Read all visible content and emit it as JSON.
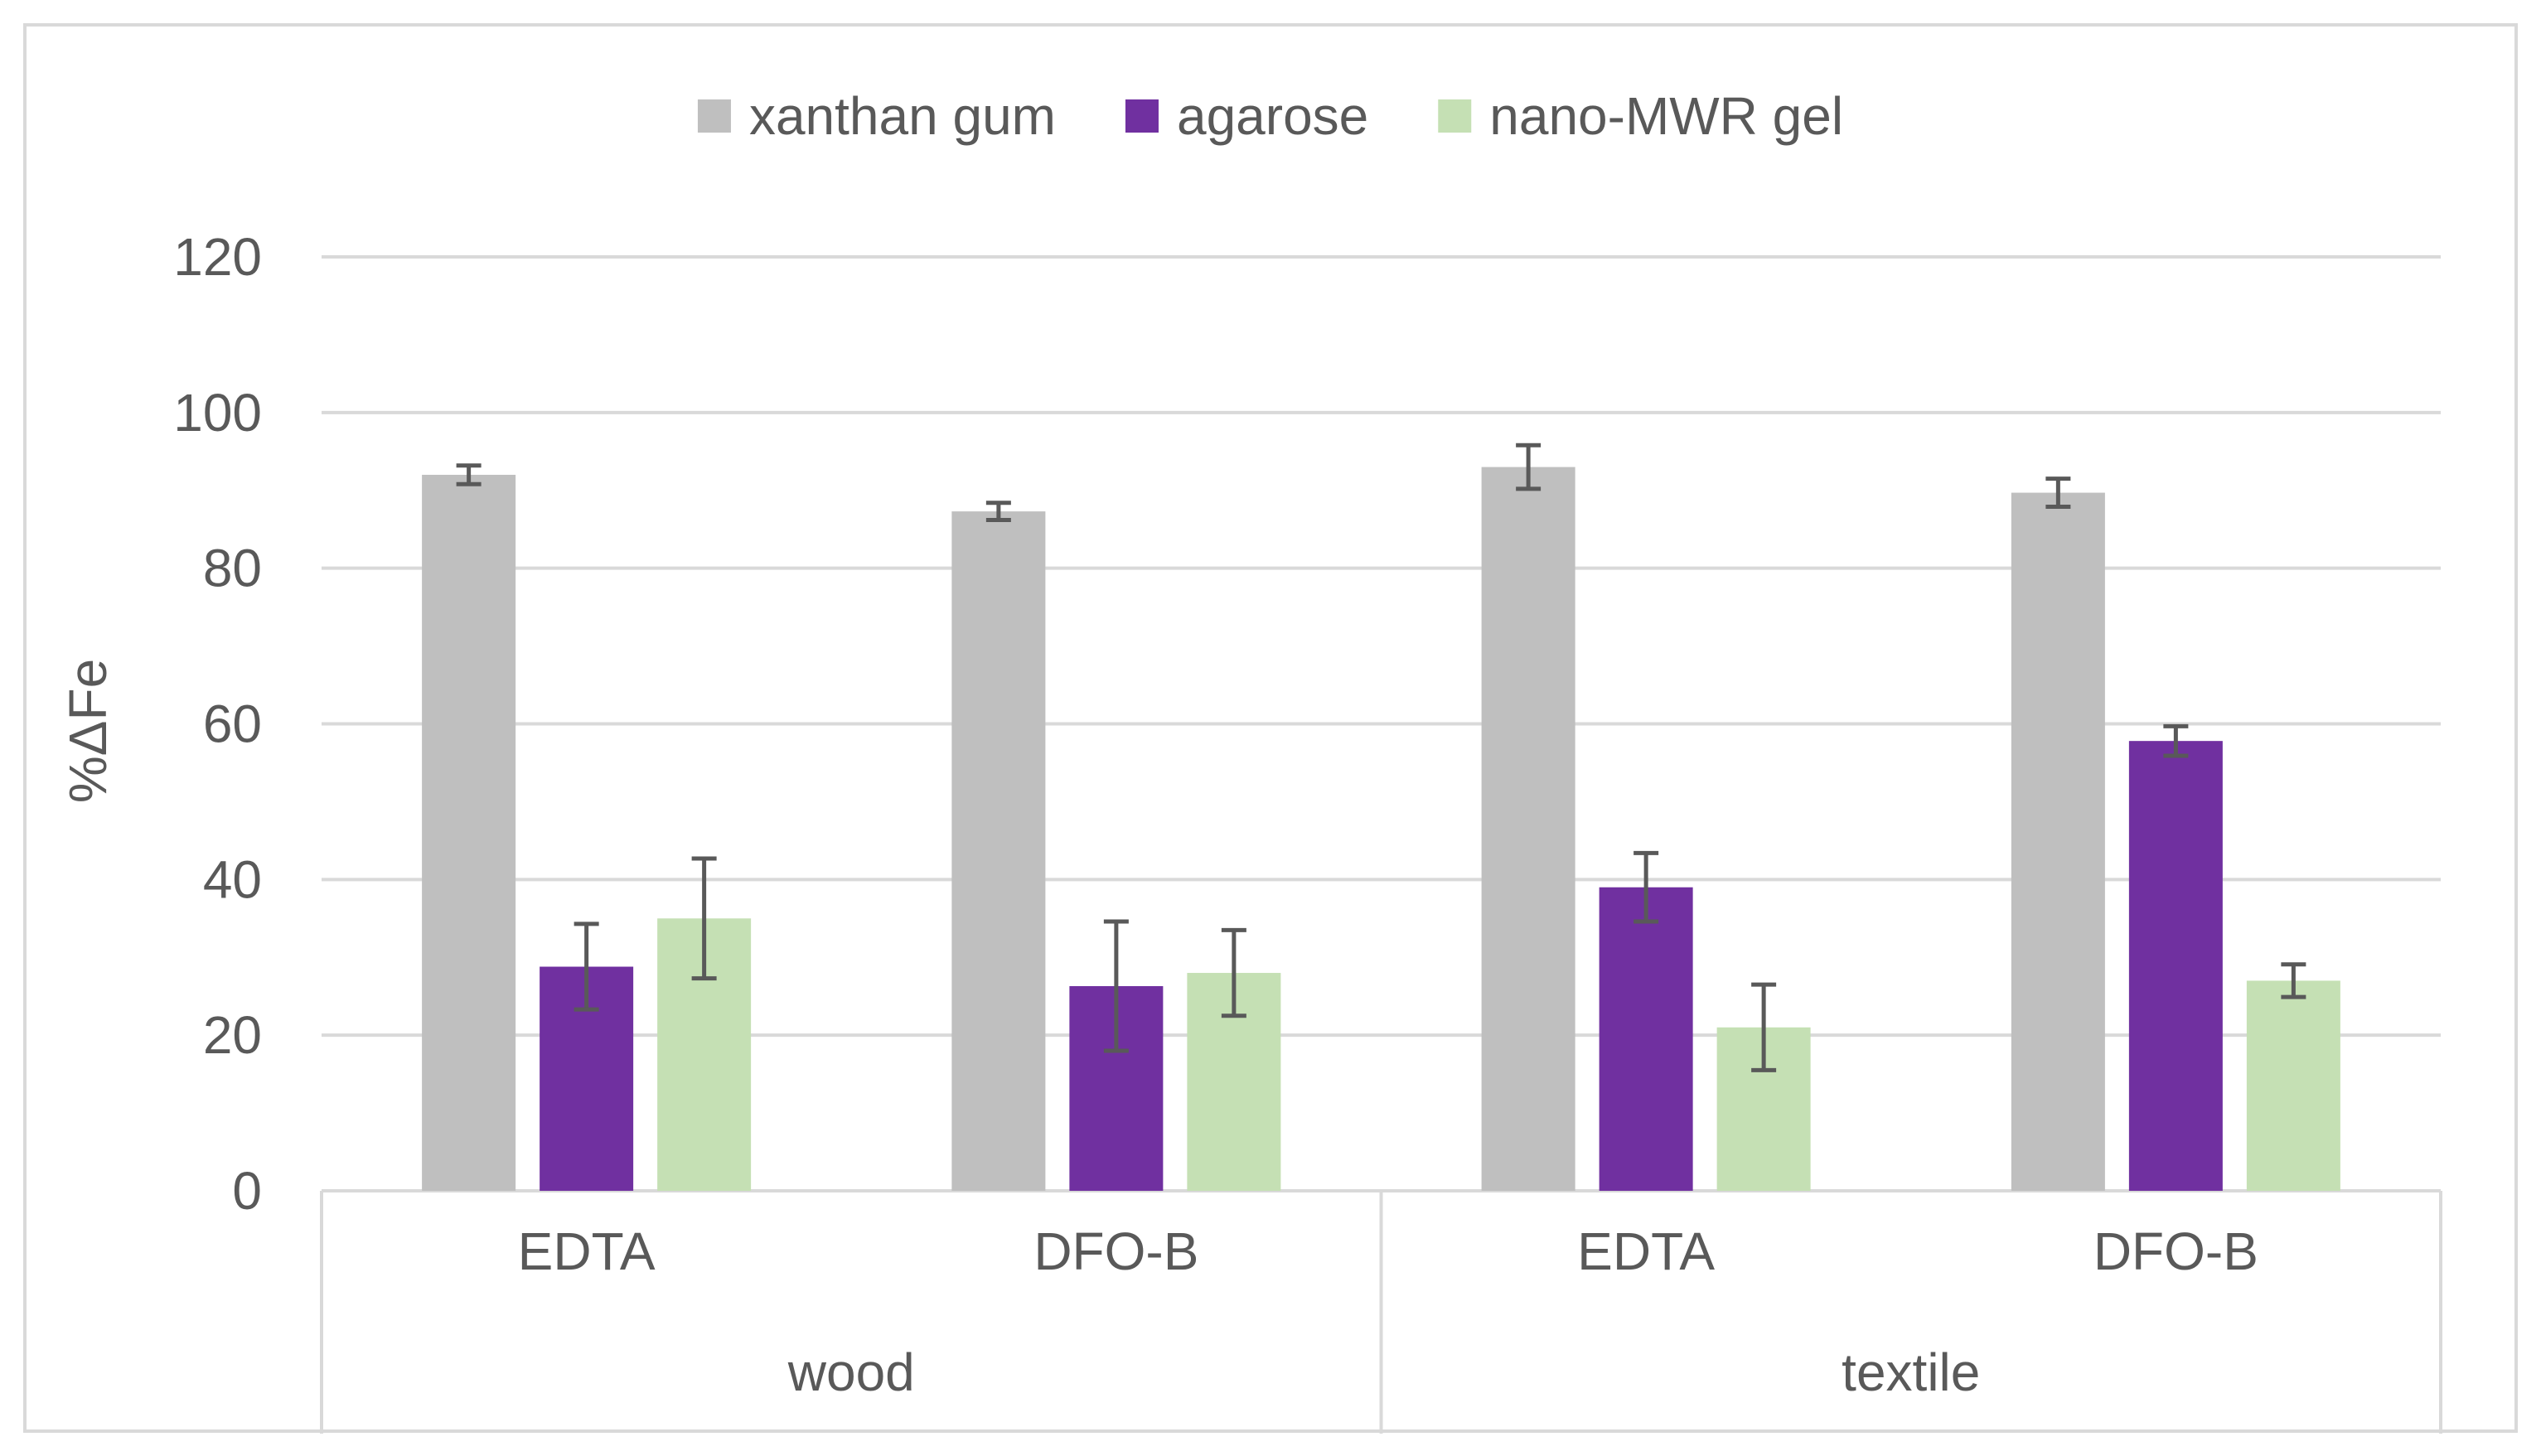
{
  "chart_data": {
    "type": "bar",
    "title": "",
    "xlabel": "",
    "ylabel": "%ΔFe",
    "ylim": [
      0,
      120
    ],
    "yticks": [
      0,
      20,
      40,
      60,
      80,
      100,
      120
    ],
    "grid": true,
    "legend_position": "top",
    "groups": [
      {
        "label": "wood",
        "categories": [
          "EDTA",
          "DFO-B"
        ]
      },
      {
        "label": "textile",
        "categories": [
          "EDTA",
          "DFO-B"
        ]
      }
    ],
    "categories": [
      "EDTA",
      "DFO-B",
      "EDTA",
      "DFO-B"
    ],
    "series": [
      {
        "name": "xanthan gum",
        "color": "#bfbfbf",
        "values": [
          92,
          87.3,
          93,
          89.7
        ],
        "error": [
          1.2,
          1.1,
          2.8,
          1.8
        ]
      },
      {
        "name": "agarose",
        "color": "#7030a0",
        "values": [
          28.8,
          26.3,
          39,
          57.8
        ],
        "error": [
          5.5,
          8.3,
          4.4,
          1.9
        ]
      },
      {
        "name": "nano-MWR gel",
        "color": "#c5e0b4",
        "values": [
          35,
          28,
          21,
          27
        ],
        "error": [
          7.7,
          5.5,
          5.5,
          2.1
        ]
      }
    ]
  }
}
